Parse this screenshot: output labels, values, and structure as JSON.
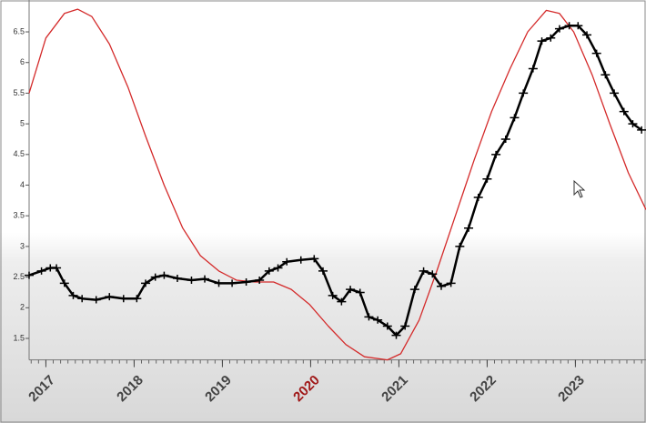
{
  "chart_data": {
    "type": "line",
    "xlim": [
      2016.81,
      2023.8
    ],
    "xticks": [
      2017,
      2018,
      2019,
      2020,
      2021,
      2022,
      2023
    ],
    "highlighted_xtick": 2020,
    "highlight_color": "#a01818",
    "ylim": [
      1.15,
      6.95
    ],
    "yticks": [
      1.5,
      2,
      2.5,
      3,
      3.5,
      4,
      4.5,
      5,
      5.5,
      6,
      6.5
    ],
    "series": [
      {
        "color": "#d42a2a",
        "markers": false,
        "x": [
          2016.81,
          2017.0,
          2017.21,
          2017.36,
          2017.52,
          2017.72,
          2017.93,
          2018.13,
          2018.34,
          2018.55,
          2018.75,
          2018.96,
          2019.16,
          2019.37,
          2019.58,
          2019.78,
          2019.99,
          2020.2,
          2020.4,
          2020.61,
          2020.87,
          2021.02,
          2021.23,
          2021.43,
          2021.64,
          2021.85,
          2022.05,
          2022.26,
          2022.46,
          2022.67,
          2022.82,
          2022.98,
          2023.19,
          2023.39,
          2023.6,
          2023.8
        ],
        "values": [
          5.5,
          6.4,
          6.8,
          6.87,
          6.75,
          6.3,
          5.6,
          4.8,
          4.0,
          3.3,
          2.85,
          2.6,
          2.45,
          2.42,
          2.42,
          2.3,
          2.05,
          1.7,
          1.4,
          1.2,
          1.15,
          1.25,
          1.8,
          2.6,
          3.5,
          4.4,
          5.2,
          5.9,
          6.5,
          6.85,
          6.8,
          6.5,
          5.8,
          5.0,
          4.2,
          3.6
        ]
      },
      {
        "color": "#000000",
        "markers": true,
        "x": [
          2016.81,
          2016.95,
          2017.05,
          2017.12,
          2017.21,
          2017.31,
          2017.41,
          2017.57,
          2017.72,
          2017.88,
          2018.03,
          2018.13,
          2018.24,
          2018.34,
          2018.49,
          2018.65,
          2018.8,
          2018.96,
          2019.11,
          2019.27,
          2019.42,
          2019.53,
          2019.63,
          2019.73,
          2019.89,
          2020.04,
          2020.14,
          2020.25,
          2020.35,
          2020.45,
          2020.56,
          2020.66,
          2020.76,
          2020.87,
          2020.97,
          2021.07,
          2021.18,
          2021.28,
          2021.38,
          2021.48,
          2021.59,
          2021.69,
          2021.79,
          2021.9,
          2022.0,
          2022.1,
          2022.21,
          2022.31,
          2022.41,
          2022.52,
          2022.62,
          2022.72,
          2022.82,
          2022.93,
          2023.03,
          2023.13,
          2023.24,
          2023.34,
          2023.44,
          2023.55,
          2023.65,
          2023.75
        ],
        "values": [
          2.53,
          2.6,
          2.65,
          2.65,
          2.4,
          2.2,
          2.15,
          2.13,
          2.18,
          2.15,
          2.15,
          2.4,
          2.5,
          2.53,
          2.48,
          2.45,
          2.47,
          2.4,
          2.4,
          2.42,
          2.45,
          2.6,
          2.65,
          2.75,
          2.78,
          2.8,
          2.6,
          2.2,
          2.1,
          2.3,
          2.25,
          1.85,
          1.8,
          1.7,
          1.55,
          1.7,
          2.3,
          2.6,
          2.55,
          2.35,
          2.4,
          3.0,
          3.3,
          3.8,
          4.1,
          4.5,
          4.75,
          5.1,
          5.5,
          5.9,
          6.35,
          6.4,
          6.55,
          6.6,
          6.6,
          6.45,
          6.15,
          5.8,
          5.5,
          5.2,
          5.0,
          4.9
        ]
      }
    ]
  }
}
